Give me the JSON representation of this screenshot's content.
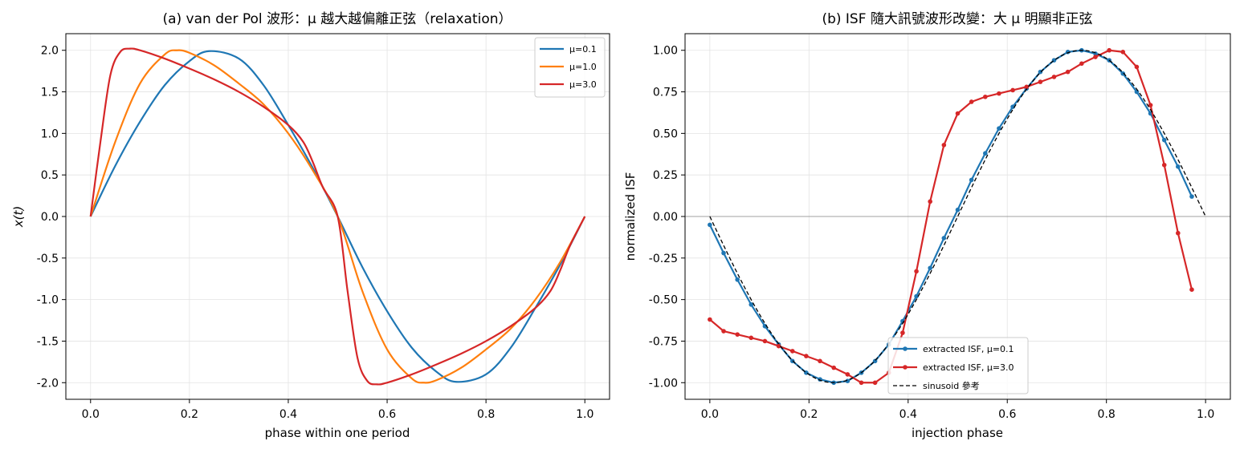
{
  "chart_data": [
    {
      "type": "line",
      "title": "(a) van der Pol 波形：μ 越大越偏離正弦（relaxation）",
      "xlabel": "phase within one period",
      "ylabel": "x(t)",
      "xlim": [
        -0.05,
        1.05
      ],
      "ylim": [
        -2.2,
        2.2
      ],
      "xticks": [
        "0.0",
        "0.2",
        "0.4",
        "0.6",
        "0.8",
        "1.0"
      ],
      "yticks": [
        "-2.0",
        "-1.5",
        "-1.0",
        "-0.5",
        "0.0",
        "0.5",
        "1.0",
        "1.5",
        "2.0"
      ],
      "grid": true,
      "legend_position": "upper right",
      "series": [
        {
          "name": "μ=0.1",
          "color": "#1f77b4",
          "x": [
            0,
            0.05,
            0.1,
            0.15,
            0.2,
            0.24,
            0.3,
            0.35,
            0.4,
            0.45,
            0.5,
            0.55,
            0.6,
            0.65,
            0.7,
            0.74,
            0.8,
            0.85,
            0.9,
            0.95,
            1.0
          ],
          "y": [
            0,
            0.61,
            1.14,
            1.58,
            1.87,
            1.99,
            1.9,
            1.58,
            1.1,
            0.58,
            0,
            -0.61,
            -1.14,
            -1.58,
            -1.87,
            -1.99,
            -1.9,
            -1.58,
            -1.1,
            -0.58,
            0
          ]
        },
        {
          "name": "μ=1.0",
          "color": "#ff7f0e",
          "x": [
            0,
            0.05,
            0.1,
            0.15,
            0.175,
            0.2,
            0.25,
            0.3,
            0.35,
            0.4,
            0.45,
            0.5,
            0.55,
            0.6,
            0.65,
            0.675,
            0.7,
            0.75,
            0.8,
            0.85,
            0.9,
            0.95,
            1.0
          ],
          "y": [
            0,
            0.9,
            1.6,
            1.95,
            2.0,
            1.97,
            1.82,
            1.6,
            1.35,
            1.0,
            0.55,
            0,
            -0.9,
            -1.6,
            -1.95,
            -2.0,
            -1.97,
            -1.82,
            -1.6,
            -1.35,
            -1.0,
            -0.55,
            0
          ]
        },
        {
          "name": "μ=3.0",
          "color": "#d62728",
          "x": [
            0,
            0.02,
            0.04,
            0.06,
            0.08,
            0.1,
            0.15,
            0.2,
            0.25,
            0.3,
            0.35,
            0.4,
            0.43,
            0.45,
            0.47,
            0.5,
            0.52,
            0.54,
            0.56,
            0.58,
            0.6,
            0.65,
            0.7,
            0.75,
            0.8,
            0.85,
            0.9,
            0.93,
            0.95,
            0.97,
            1.0
          ],
          "y": [
            0,
            0.9,
            1.7,
            1.98,
            2.02,
            2.0,
            1.9,
            1.78,
            1.65,
            1.5,
            1.32,
            1.1,
            0.9,
            0.65,
            0.35,
            0,
            -0.9,
            -1.7,
            -1.98,
            -2.02,
            -2.0,
            -1.9,
            -1.78,
            -1.65,
            -1.5,
            -1.32,
            -1.1,
            -0.9,
            -0.65,
            -0.35,
            0
          ]
        }
      ]
    },
    {
      "type": "line",
      "title": "(b) ISF 隨大訊號波形改變：大 μ 明顯非正弦",
      "xlabel": "injection phase",
      "ylabel": "normalized ISF",
      "xlim": [
        -0.05,
        1.05
      ],
      "ylim": [
        -1.1,
        1.1
      ],
      "xticks": [
        "0.0",
        "0.2",
        "0.4",
        "0.6",
        "0.8",
        "1.0"
      ],
      "yticks": [
        "-1.00",
        "-0.75",
        "-0.50",
        "-0.25",
        "0.00",
        "0.25",
        "0.50",
        "0.75",
        "1.00"
      ],
      "grid": true,
      "legend_position": "lower center",
      "series": [
        {
          "name": "extracted ISF, μ=0.1",
          "color": "#1f77b4",
          "markers": true,
          "x": [
            0.0,
            0.0278,
            0.0556,
            0.0833,
            0.1111,
            0.1389,
            0.1667,
            0.1944,
            0.2222,
            0.25,
            0.2778,
            0.3056,
            0.3333,
            0.3611,
            0.3889,
            0.4167,
            0.4444,
            0.4722,
            0.5,
            0.5278,
            0.5556,
            0.5833,
            0.6111,
            0.6389,
            0.6667,
            0.6944,
            0.7222,
            0.75,
            0.7778,
            0.8056,
            0.8333,
            0.8611,
            0.8889,
            0.9167,
            0.9444,
            0.9722
          ],
          "y": [
            -0.05,
            -0.22,
            -0.38,
            -0.53,
            -0.66,
            -0.77,
            -0.87,
            -0.94,
            -0.98,
            -1.0,
            -0.99,
            -0.94,
            -0.87,
            -0.77,
            -0.63,
            -0.48,
            -0.31,
            -0.13,
            0.04,
            0.22,
            0.38,
            0.53,
            0.66,
            0.77,
            0.87,
            0.94,
            0.99,
            1.0,
            0.98,
            0.94,
            0.86,
            0.75,
            0.62,
            0.46,
            0.3,
            0.12
          ]
        },
        {
          "name": "extracted ISF, μ=3.0",
          "color": "#d62728",
          "markers": true,
          "x": [
            0.0,
            0.0278,
            0.0556,
            0.0833,
            0.1111,
            0.1389,
            0.1667,
            0.1944,
            0.2222,
            0.25,
            0.2778,
            0.3056,
            0.3333,
            0.3611,
            0.3889,
            0.4167,
            0.4444,
            0.4722,
            0.5,
            0.5278,
            0.5556,
            0.5833,
            0.6111,
            0.6389,
            0.6667,
            0.6944,
            0.7222,
            0.75,
            0.7778,
            0.8056,
            0.8333,
            0.8611,
            0.8889,
            0.9167,
            0.9444,
            0.9722
          ],
          "y": [
            -0.62,
            -0.69,
            -0.71,
            -0.73,
            -0.75,
            -0.78,
            -0.81,
            -0.84,
            -0.87,
            -0.91,
            -0.95,
            -1.0,
            -1.0,
            -0.94,
            -0.7,
            -0.33,
            0.09,
            0.43,
            0.62,
            0.69,
            0.72,
            0.74,
            0.76,
            0.78,
            0.81,
            0.84,
            0.87,
            0.92,
            0.96,
            1.0,
            0.99,
            0.9,
            0.67,
            0.31,
            -0.1,
            -0.44
          ]
        },
        {
          "name": "sinusoid 參考",
          "color": "#000000",
          "dashed": true,
          "function": "-sin(2πx)",
          "x_range": [
            0,
            1
          ]
        }
      ]
    }
  ]
}
